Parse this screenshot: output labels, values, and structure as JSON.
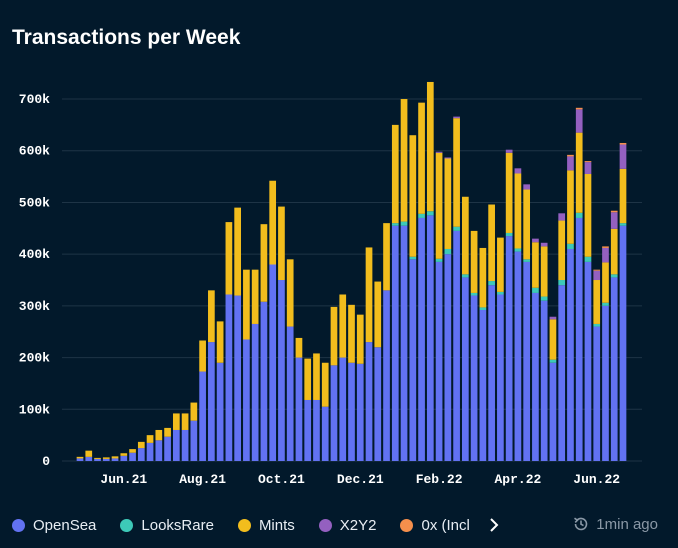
{
  "title": "Transactions per Week",
  "updated": "1min ago",
  "colors": {
    "OpenSea": "#6272f2",
    "LooksRare": "#3dc9b8",
    "Mints": "#f2bd1d",
    "X2Y2": "#9460c0",
    "0x": "#f58f4c"
  },
  "legend": [
    {
      "name": "OpenSea",
      "color": "#6272f2"
    },
    {
      "name": "LooksRare",
      "color": "#3dc9b8"
    },
    {
      "name": "Mints",
      "color": "#f2bd1d"
    },
    {
      "name": "X2Y2",
      "color": "#9460c0"
    },
    {
      "name": "0x (Incl",
      "color": "#f58f4c"
    }
  ],
  "chart_data": {
    "type": "bar",
    "stacked": true,
    "title": "Transactions per Week",
    "ylim": [
      0,
      760000
    ],
    "y_ticks": [
      0,
      100000,
      200000,
      300000,
      400000,
      500000,
      600000,
      700000
    ],
    "y_tick_labels": [
      "0",
      "100k",
      "200k",
      "300k",
      "400k",
      "500k",
      "600k",
      "700k"
    ],
    "x_labels": [
      {
        "index": 5,
        "label": "Jun.21"
      },
      {
        "index": 14,
        "label": "Aug.21"
      },
      {
        "index": 23,
        "label": "Oct.21"
      },
      {
        "index": 32,
        "label": "Dec.21"
      },
      {
        "index": 41,
        "label": "Feb.22"
      },
      {
        "index": 50,
        "label": "Apr.22"
      },
      {
        "index": 59,
        "label": "Jun.22"
      }
    ],
    "series": [
      {
        "name": "OpenSea",
        "values": [
          5000,
          8000,
          4000,
          4000,
          5000,
          10000,
          16000,
          25000,
          35000,
          40000,
          47000,
          60000,
          60000,
          78000,
          173000,
          230000,
          190000,
          322000,
          320000,
          235000,
          265000,
          308000,
          380000,
          350000,
          260000,
          200000,
          118000,
          118000,
          105000,
          185000,
          200000,
          190000,
          188000,
          230000,
          220000,
          330000,
          455000,
          455000,
          390000,
          470000,
          475000,
          385000,
          400000,
          445000,
          355000,
          320000,
          292000,
          340000,
          322000,
          435000,
          405000,
          385000,
          325000,
          310000,
          190000,
          340000,
          410000,
          470000,
          385000,
          260000,
          300000,
          355000,
          455000
        ]
      },
      {
        "name": "LooksRare",
        "values": [
          0,
          0,
          0,
          0,
          0,
          0,
          0,
          0,
          0,
          0,
          0,
          0,
          0,
          0,
          0,
          0,
          0,
          0,
          0,
          0,
          0,
          0,
          0,
          0,
          0,
          0,
          0,
          0,
          0,
          0,
          0,
          0,
          0,
          0,
          0,
          0,
          5000,
          8000,
          5000,
          8000,
          8000,
          6000,
          10000,
          8000,
          6000,
          5000,
          5000,
          8000,
          5000,
          6000,
          6000,
          5000,
          10000,
          8000,
          6000,
          10000,
          10000,
          10000,
          10000,
          5000,
          6000,
          6000,
          5000
        ]
      },
      {
        "name": "Mints",
        "values": [
          3000,
          12000,
          2000,
          3000,
          4000,
          5000,
          7000,
          12000,
          15000,
          20000,
          17000,
          32000,
          32000,
          35000,
          60000,
          100000,
          80000,
          140000,
          170000,
          135000,
          105000,
          150000,
          162000,
          142000,
          130000,
          38000,
          80000,
          90000,
          85000,
          113000,
          122000,
          112000,
          95000,
          183000,
          127000,
          130000,
          190000,
          237000,
          235000,
          215000,
          250000,
          205000,
          175000,
          210000,
          150000,
          120000,
          115000,
          148000,
          105000,
          155000,
          145000,
          135000,
          88000,
          97000,
          78000,
          115000,
          142000,
          155000,
          160000,
          85000,
          78000,
          88000,
          105000
        ]
      },
      {
        "name": "X2Y2",
        "values": [
          0,
          0,
          0,
          0,
          0,
          0,
          0,
          0,
          0,
          0,
          0,
          0,
          0,
          0,
          0,
          0,
          0,
          0,
          0,
          0,
          0,
          0,
          0,
          0,
          0,
          0,
          0,
          0,
          0,
          0,
          0,
          0,
          0,
          0,
          0,
          0,
          0,
          0,
          0,
          0,
          0,
          2000,
          2000,
          3000,
          0,
          0,
          0,
          0,
          0,
          6000,
          10000,
          10000,
          7000,
          7000,
          5000,
          14000,
          27000,
          45000,
          23000,
          18000,
          28000,
          32000,
          47000
        ]
      },
      {
        "name": "0x (Incl",
        "values": [
          0,
          0,
          0,
          0,
          0,
          0,
          0,
          0,
          0,
          0,
          0,
          0,
          0,
          0,
          0,
          0,
          0,
          0,
          0,
          0,
          0,
          0,
          0,
          0,
          0,
          0,
          0,
          0,
          0,
          0,
          0,
          0,
          0,
          0,
          0,
          0,
          0,
          0,
          0,
          0,
          0,
          0,
          0,
          0,
          0,
          0,
          0,
          0,
          0,
          0,
          0,
          0,
          0,
          0,
          0,
          0,
          3000,
          3000,
          2000,
          2000,
          3000,
          3000,
          3000
        ]
      }
    ]
  }
}
